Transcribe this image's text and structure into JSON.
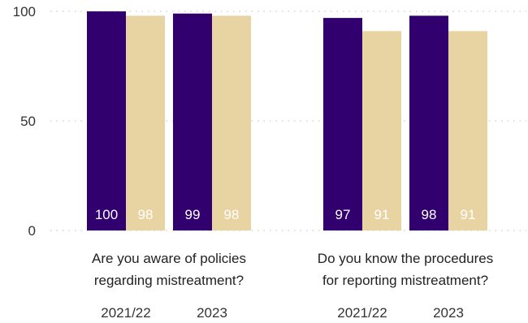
{
  "chart_data": {
    "type": "bar",
    "ylim": [
      0,
      100
    ],
    "yticks": [
      0,
      50,
      100
    ],
    "grid": true,
    "colors": {
      "purple": "#32006e",
      "gold": "#e8d3a2"
    },
    "groups": [
      {
        "label_lines": [
          "Are you aware of policies",
          "regarding mistreatment?"
        ],
        "years": [
          {
            "label": "2021/22",
            "values": [
              100,
              98
            ]
          },
          {
            "label": "2023",
            "values": [
              99,
              98
            ]
          }
        ]
      },
      {
        "label_lines": [
          "Do you know the procedures",
          "for reporting mistreatment?"
        ],
        "years": [
          {
            "label": "2021/22",
            "values": [
              97,
              91
            ]
          },
          {
            "label": "2023",
            "values": [
              98,
              91
            ]
          }
        ]
      }
    ]
  }
}
